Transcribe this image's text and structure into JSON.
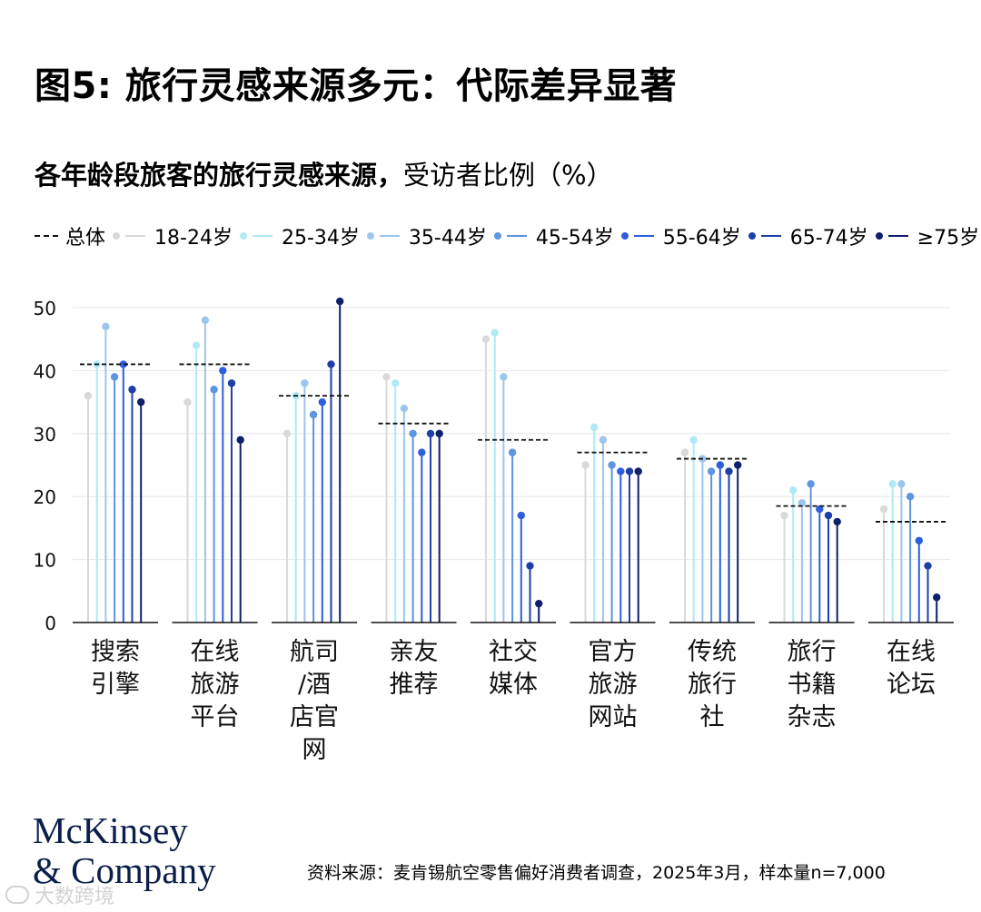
{
  "title": "图5: 旅行灵感来源多元：代际差异显著",
  "subtitle_bold": "各年龄段旅客的旅行灵感来源，",
  "subtitle_normal": "受访者比例（%）",
  "source": "资料来源：麦肯锡航空零售偏好消费者调查，2025年3月，样本量n=7,000",
  "brand": {
    "line1": "McKinsey",
    "line2": "& Company"
  },
  "watermark": "大数跨境",
  "chart_data": {
    "type": "lollipop",
    "overall_label": "总体",
    "categories": [
      [
        "搜索",
        "引擎"
      ],
      [
        "在线",
        "旅游",
        "平台"
      ],
      [
        "航司",
        "/酒",
        "店官",
        "网"
      ],
      [
        "亲友",
        "推荐"
      ],
      [
        "社交",
        "媒体"
      ],
      [
        "官方",
        "旅游",
        "网站"
      ],
      [
        "传统",
        "旅行",
        "社"
      ],
      [
        "旅行",
        "书籍",
        "杂志"
      ],
      [
        "在线",
        "论坛"
      ]
    ],
    "overall": [
      41,
      41,
      36,
      31.6,
      29,
      27,
      26,
      18.5,
      16
    ],
    "series": [
      {
        "name": "18-24岁",
        "color": "#d9d9d9",
        "values": [
          36,
          35,
          30,
          39,
          45,
          25,
          27,
          17,
          18
        ]
      },
      {
        "name": "25-34岁",
        "color": "#aeeaf6",
        "values": [
          41,
          44,
          36,
          38,
          46,
          31,
          29,
          21,
          22
        ]
      },
      {
        "name": "35-44岁",
        "color": "#9cc5ee",
        "values": [
          47,
          48,
          38,
          34,
          39,
          29,
          26,
          19,
          22
        ]
      },
      {
        "name": "45-54岁",
        "color": "#5d95e0",
        "values": [
          39,
          37,
          33,
          30,
          27,
          25,
          24,
          22,
          20
        ]
      },
      {
        "name": "55-64岁",
        "color": "#2d5fdc",
        "values": [
          41,
          40,
          35,
          27,
          17,
          24,
          25,
          18,
          13
        ]
      },
      {
        "name": "65-74岁",
        "color": "#1e3fa8",
        "values": [
          37,
          38,
          41,
          30,
          9,
          24,
          24,
          17,
          9
        ]
      },
      {
        "name": "≥75岁",
        "color": "#0f1f6b",
        "values": [
          35,
          29,
          51,
          30,
          3,
          24,
          25,
          16,
          4
        ]
      }
    ],
    "yticks": [
      0,
      10,
      20,
      30,
      40,
      50
    ],
    "ylim": [
      0,
      50
    ],
    "grid": true,
    "legend_position": "top"
  }
}
